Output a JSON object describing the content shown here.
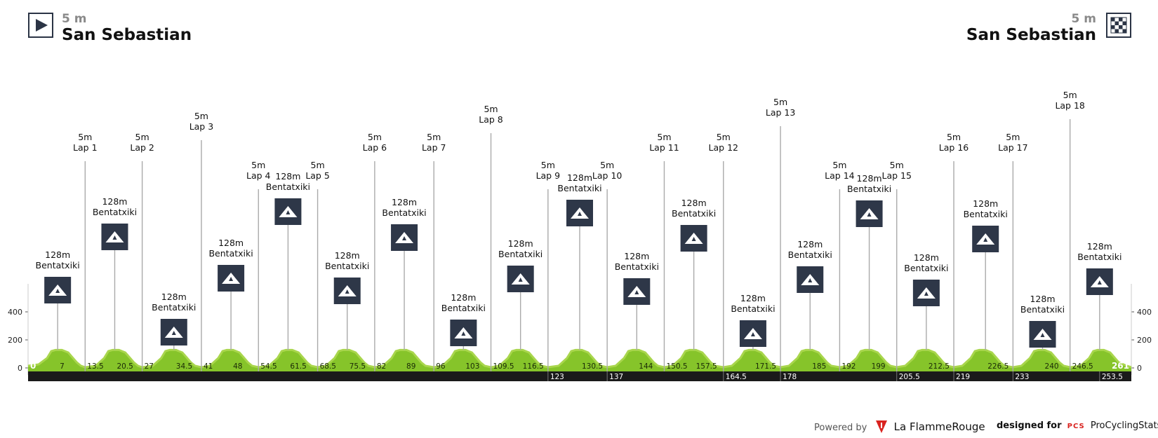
{
  "start": {
    "altitude": "5 m",
    "name": "San Sebastian",
    "icon": "play-flag-icon"
  },
  "finish": {
    "altitude": "5 m",
    "name": "San Sebastian",
    "icon": "checkered-flag-icon"
  },
  "footer": {
    "powered_label": "Powered by",
    "powered_brand": "La FlammeRouge",
    "designed_label": "designed for",
    "designed_logo": "PCS",
    "designed_brand": "ProCyclingStats"
  },
  "colors": {
    "terrain": "#86c42a",
    "terrain_top": "#a9d64d",
    "ruler": "#1a1a1a",
    "badge": "#2e3748",
    "marker_line": "#aaaaaa"
  },
  "chart_data": {
    "type": "area",
    "title": "",
    "xlabel": "",
    "ylabel": "",
    "xlim": [
      0,
      261
    ],
    "ylim": [
      -100,
      600
    ],
    "y_ticks": [
      0,
      200,
      400
    ],
    "profile": [
      [
        0,
        15
      ],
      [
        2.5,
        25
      ],
      [
        4.5,
        70
      ],
      [
        5.5,
        120
      ],
      [
        6.5,
        128
      ],
      [
        8,
        128
      ],
      [
        9.5,
        110
      ],
      [
        10.5,
        75
      ],
      [
        11.5,
        40
      ],
      [
        12.5,
        15
      ],
      [
        13.5,
        5
      ],
      [
        16,
        15
      ],
      [
        18,
        70
      ],
      [
        19,
        120
      ],
      [
        20,
        128
      ],
      [
        21.5,
        128
      ],
      [
        23,
        110
      ],
      [
        24,
        75
      ],
      [
        25,
        40
      ],
      [
        26,
        15
      ],
      [
        27,
        5
      ],
      [
        29.5,
        15
      ],
      [
        31.5,
        70
      ],
      [
        32.5,
        120
      ],
      [
        33.5,
        128
      ],
      [
        35,
        128
      ],
      [
        36.5,
        110
      ],
      [
        37.5,
        75
      ],
      [
        38.5,
        40
      ],
      [
        39.5,
        15
      ],
      [
        41,
        5
      ],
      [
        43,
        15
      ],
      [
        45,
        70
      ],
      [
        46,
        120
      ],
      [
        47,
        128
      ],
      [
        48.5,
        128
      ],
      [
        50,
        110
      ],
      [
        51,
        75
      ],
      [
        52,
        40
      ],
      [
        53,
        15
      ],
      [
        54.5,
        5
      ],
      [
        57,
        15
      ],
      [
        59,
        70
      ],
      [
        60,
        120
      ],
      [
        61,
        128
      ],
      [
        62.5,
        128
      ],
      [
        64,
        110
      ],
      [
        65,
        75
      ],
      [
        66,
        40
      ],
      [
        67,
        15
      ],
      [
        68.5,
        5
      ],
      [
        70.5,
        15
      ],
      [
        72.5,
        70
      ],
      [
        73.5,
        120
      ],
      [
        74.5,
        128
      ],
      [
        76,
        128
      ],
      [
        77.5,
        110
      ],
      [
        78.5,
        75
      ],
      [
        79.5,
        40
      ],
      [
        80.5,
        15
      ],
      [
        82,
        5
      ],
      [
        84,
        15
      ],
      [
        86,
        70
      ],
      [
        87,
        120
      ],
      [
        88,
        128
      ],
      [
        89.5,
        128
      ],
      [
        91,
        110
      ],
      [
        92,
        75
      ],
      [
        93,
        40
      ],
      [
        94,
        15
      ],
      [
        96,
        5
      ],
      [
        98,
        15
      ],
      [
        100,
        70
      ],
      [
        101,
        120
      ],
      [
        102,
        128
      ],
      [
        103.5,
        128
      ],
      [
        105,
        110
      ],
      [
        106,
        75
      ],
      [
        107,
        40
      ],
      [
        108,
        15
      ],
      [
        109.5,
        5
      ],
      [
        111.5,
        15
      ],
      [
        113.5,
        70
      ],
      [
        114.5,
        120
      ],
      [
        115.5,
        128
      ],
      [
        117,
        128
      ],
      [
        118.5,
        110
      ],
      [
        119.5,
        75
      ],
      [
        120.5,
        40
      ],
      [
        121.5,
        15
      ],
      [
        123,
        5
      ],
      [
        125.5,
        15
      ],
      [
        127.5,
        70
      ],
      [
        128.5,
        120
      ],
      [
        129.5,
        128
      ],
      [
        131,
        128
      ],
      [
        132.5,
        110
      ],
      [
        133.5,
        75
      ],
      [
        134.5,
        40
      ],
      [
        135.5,
        15
      ],
      [
        137,
        5
      ],
      [
        139,
        15
      ],
      [
        141,
        70
      ],
      [
        142,
        120
      ],
      [
        143,
        128
      ],
      [
        144.5,
        128
      ],
      [
        146,
        110
      ],
      [
        147,
        75
      ],
      [
        148,
        40
      ],
      [
        149,
        15
      ],
      [
        150.5,
        5
      ],
      [
        152.5,
        15
      ],
      [
        154.5,
        70
      ],
      [
        155.5,
        120
      ],
      [
        156.5,
        128
      ],
      [
        158,
        128
      ],
      [
        159.5,
        110
      ],
      [
        160.5,
        75
      ],
      [
        161.5,
        40
      ],
      [
        162.5,
        15
      ],
      [
        164.5,
        5
      ],
      [
        166.5,
        15
      ],
      [
        168.5,
        70
      ],
      [
        169.5,
        120
      ],
      [
        170.5,
        128
      ],
      [
        172,
        128
      ],
      [
        173.5,
        110
      ],
      [
        174.5,
        75
      ],
      [
        175.5,
        40
      ],
      [
        176.5,
        15
      ],
      [
        178,
        5
      ],
      [
        180,
        15
      ],
      [
        182,
        70
      ],
      [
        183,
        120
      ],
      [
        184,
        128
      ],
      [
        185.5,
        128
      ],
      [
        187,
        110
      ],
      [
        188,
        75
      ],
      [
        189,
        40
      ],
      [
        190,
        15
      ],
      [
        192,
        5
      ],
      [
        194,
        15
      ],
      [
        196,
        70
      ],
      [
        197,
        120
      ],
      [
        198,
        128
      ],
      [
        199.5,
        128
      ],
      [
        201,
        110
      ],
      [
        202,
        75
      ],
      [
        203,
        40
      ],
      [
        204,
        15
      ],
      [
        205.5,
        5
      ],
      [
        207.5,
        15
      ],
      [
        209.5,
        70
      ],
      [
        210.5,
        120
      ],
      [
        211.5,
        128
      ],
      [
        213,
        128
      ],
      [
        214.5,
        110
      ],
      [
        215.5,
        75
      ],
      [
        216.5,
        40
      ],
      [
        217.5,
        15
      ],
      [
        219,
        5
      ],
      [
        221,
        15
      ],
      [
        223,
        70
      ],
      [
        224,
        120
      ],
      [
        225,
        128
      ],
      [
        226.5,
        128
      ],
      [
        228,
        110
      ],
      [
        229,
        75
      ],
      [
        230,
        40
      ],
      [
        231,
        15
      ],
      [
        233,
        5
      ],
      [
        235,
        15
      ],
      [
        237,
        70
      ],
      [
        238,
        120
      ],
      [
        239,
        128
      ],
      [
        240.5,
        128
      ],
      [
        242,
        110
      ],
      [
        243,
        75
      ],
      [
        244,
        40
      ],
      [
        245,
        15
      ],
      [
        246.5,
        5
      ],
      [
        249,
        15
      ],
      [
        251,
        70
      ],
      [
        252,
        120
      ],
      [
        253,
        128
      ],
      [
        254.5,
        128
      ],
      [
        256,
        110
      ],
      [
        257,
        75
      ],
      [
        258,
        40
      ],
      [
        259.5,
        20
      ],
      [
        261,
        5
      ]
    ],
    "km_marks_top": [
      "0",
      "7",
      "13.5",
      "20.5",
      "27",
      "34.5",
      "41",
      "48",
      "54.5",
      "61.5",
      "68.5",
      "75.5",
      "82",
      "89",
      "96",
      "103",
      "109.5",
      "116.5",
      "130.5",
      "144",
      "150.5",
      "157.5",
      "171.5",
      "185",
      "192",
      "199",
      "212.5",
      "226.5",
      "240",
      "246.5",
      "261"
    ],
    "km_marks_bottom": [
      "123",
      "137",
      "164.5",
      "178",
      "205.5",
      "219",
      "233",
      "253.5"
    ],
    "laps": [
      {
        "label": "Lap 1",
        "km": 13.5,
        "alt": "5m"
      },
      {
        "label": "Lap 2",
        "km": 27,
        "alt": "5m"
      },
      {
        "label": "Lap 3",
        "km": 41,
        "alt": "5m"
      },
      {
        "label": "Lap 4",
        "km": 54.5,
        "alt": "5m"
      },
      {
        "label": "Lap 5",
        "km": 68.5,
        "alt": "5m"
      },
      {
        "label": "Lap 6",
        "km": 82,
        "alt": "5m"
      },
      {
        "label": "Lap 7",
        "km": 96,
        "alt": "5m"
      },
      {
        "label": "Lap 8",
        "km": 109.5,
        "alt": "5m"
      },
      {
        "label": "Lap 9",
        "km": 123,
        "alt": "5m"
      },
      {
        "label": "Lap 10",
        "km": 137,
        "alt": "5m"
      },
      {
        "label": "Lap 11",
        "km": 150.5,
        "alt": "5m"
      },
      {
        "label": "Lap 12",
        "km": 164.5,
        "alt": "5m"
      },
      {
        "label": "Lap 13",
        "km": 178,
        "alt": "5m"
      },
      {
        "label": "Lap 14",
        "km": 192,
        "alt": "5m"
      },
      {
        "label": "Lap 15",
        "km": 205.5,
        "alt": "5m"
      },
      {
        "label": "Lap 16",
        "km": 219,
        "alt": "5m"
      },
      {
        "label": "Lap 17",
        "km": 233,
        "alt": "5m"
      },
      {
        "label": "Lap 18",
        "km": 246.5,
        "alt": "5m"
      }
    ],
    "climbs": [
      {
        "name": "Bentatxiki",
        "km": 7,
        "alt": "128m"
      },
      {
        "name": "Bentatxiki",
        "km": 20.5,
        "alt": "128m"
      },
      {
        "name": "Bentatxiki",
        "km": 34.5,
        "alt": "128m"
      },
      {
        "name": "Bentatxiki",
        "km": 48,
        "alt": "128m"
      },
      {
        "name": "Bentatxiki",
        "km": 61.5,
        "alt": "128m"
      },
      {
        "name": "Bentatxiki",
        "km": 75.5,
        "alt": "128m"
      },
      {
        "name": "Bentatxiki",
        "km": 89,
        "alt": "128m"
      },
      {
        "name": "Bentatxiki",
        "km": 103,
        "alt": "128m"
      },
      {
        "name": "Bentatxiki",
        "km": 116.5,
        "alt": "128m"
      },
      {
        "name": "Bentatxiki",
        "km": 130.5,
        "alt": "128m"
      },
      {
        "name": "Bentatxiki",
        "km": 144,
        "alt": "128m"
      },
      {
        "name": "Bentatxiki",
        "km": 157.5,
        "alt": "128m"
      },
      {
        "name": "Bentatxiki",
        "km": 171.5,
        "alt": "128m"
      },
      {
        "name": "Bentatxiki",
        "km": 185,
        "alt": "128m"
      },
      {
        "name": "Bentatxiki",
        "km": 199,
        "alt": "128m"
      },
      {
        "name": "Bentatxiki",
        "km": 212.5,
        "alt": "128m"
      },
      {
        "name": "Bentatxiki",
        "km": 226.5,
        "alt": "128m"
      },
      {
        "name": "Bentatxiki",
        "km": 240,
        "alt": "128m"
      },
      {
        "name": "Bentatxiki",
        "km": 253.5,
        "alt": "128m"
      }
    ]
  }
}
